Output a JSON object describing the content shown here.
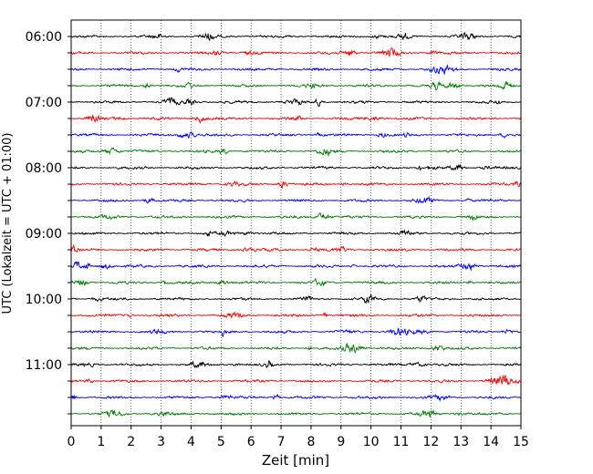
{
  "chart_data": {
    "type": "line",
    "title": "",
    "xlabel": "Zeit  [min]",
    "ylabel": "UTC (Lokalzeit = UTC + 01:00)",
    "xlim": [
      0,
      15
    ],
    "x_ticks": [
      "0",
      "1",
      "2",
      "3",
      "4",
      "5",
      "6",
      "7",
      "8",
      "9",
      "10",
      "11",
      "12",
      "13",
      "14",
      "15"
    ],
    "y_tick_labels": [
      "06:00",
      "07:00",
      "08:00",
      "09:00",
      "10:00",
      "11:00"
    ],
    "trace_start_times": [
      "06:00",
      "06:15",
      "06:30",
      "06:45",
      "07:00",
      "07:15",
      "07:30",
      "07:45",
      "08:00",
      "08:15",
      "08:30",
      "08:45",
      "09:00",
      "09:15",
      "09:30",
      "09:45",
      "10:00",
      "10:15",
      "10:30",
      "10:45",
      "11:00",
      "11:15",
      "11:30",
      "11:45"
    ],
    "trace_colors": [
      "#000000",
      "#ff0000",
      "#0000ff",
      "#007f00"
    ],
    "vertical_grid": "dotted, every 1 min",
    "series_representation": "seismic helicorder: one trace per 15 minutes, colors cycle black/red/blue/green"
  }
}
